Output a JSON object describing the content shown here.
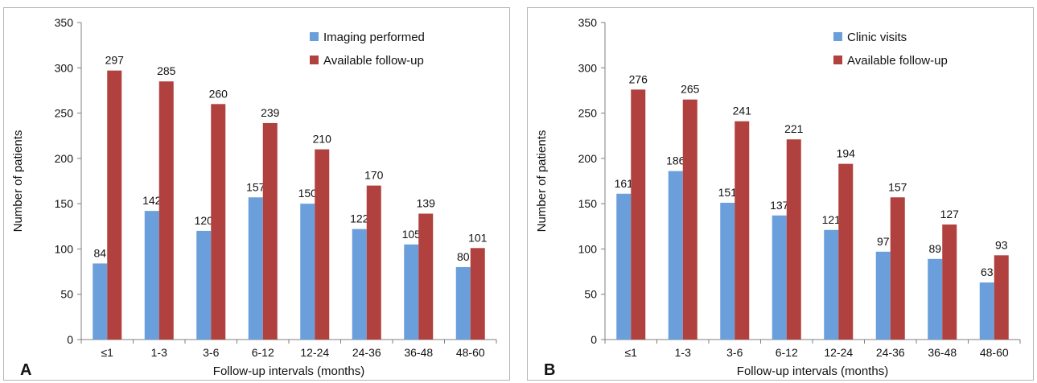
{
  "chart_data": [
    {
      "type": "bar",
      "panel_label": "A",
      "categories": [
        "≤1",
        "1-3",
        "3-6",
        "6-12",
        "12-24",
        "24-36",
        "36-48",
        "48-60"
      ],
      "series": [
        {
          "name": "Imaging performed",
          "color": "#6a9fdb",
          "values": [
            84,
            142,
            120,
            157,
            150,
            122,
            105,
            80
          ]
        },
        {
          "name": "Available follow-up",
          "color": "#b0413e",
          "values": [
            297,
            285,
            260,
            239,
            210,
            170,
            139,
            101
          ]
        }
      ],
      "xlabel": "Follow-up intervals (months)",
      "ylabel": "Number of patients",
      "ylim": [
        0,
        350
      ],
      "yticks": [
        0,
        50,
        100,
        150,
        200,
        250,
        300,
        350
      ],
      "grid": false,
      "legend": "top-right"
    },
    {
      "type": "bar",
      "panel_label": "B",
      "categories": [
        "≤1",
        "1-3",
        "3-6",
        "6-12",
        "12-24",
        "24-36",
        "36-48",
        "48-60"
      ],
      "series": [
        {
          "name": "Clinic visits",
          "color": "#6a9fdb",
          "values": [
            161,
            186,
            151,
            137,
            121,
            97,
            89,
            63
          ]
        },
        {
          "name": "Available follow-up",
          "color": "#b0413e",
          "values": [
            276,
            265,
            241,
            221,
            194,
            157,
            127,
            93
          ]
        }
      ],
      "xlabel": "Follow-up intervals (months)",
      "ylabel": "Number of patients",
      "ylim": [
        0,
        350
      ],
      "yticks": [
        0,
        50,
        100,
        150,
        200,
        250,
        300,
        350
      ],
      "grid": false,
      "legend": "top-right"
    }
  ]
}
